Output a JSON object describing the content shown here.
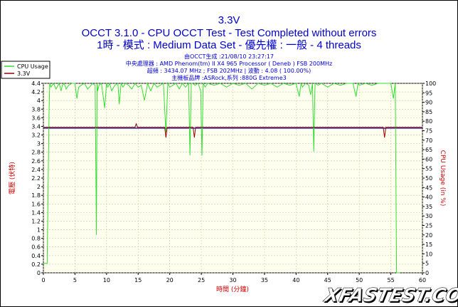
{
  "colors": {
    "background": "#ffffff",
    "plot_bg": "#fffff0",
    "grid": "#c8c8a8",
    "cpu_line": "#33dd33",
    "volt_line": "#990000",
    "avg_line": "#2020aa",
    "title": "#0000cc",
    "axis_title": "#cc0000"
  },
  "header": {
    "line1": "3.3V",
    "line2": "OCCT 3.1.0 - CPU OCCT Test - Test Completed without errors",
    "line3": "1時 - 模式 : Medium Data Set - 優先權 : 一般 - 4 threads"
  },
  "info": {
    "line1": "由OCCT生成 :21/08/10 23:27:17",
    "line2": "中央處理器 : AMD Phenom(tm) II X4 965 Processor ( Deneb ) FSB 200MHz",
    "line3": "超頻 : 3434.07 MHz ; FSB 202MHz | 波動 : 4.08 ( 100.00%)",
    "line4": "主機板品牌 :ASRock,系列 :880G Extreme3"
  },
  "watermark": "XFASTEST.COM",
  "chart_data": {
    "type": "line",
    "xlabel": "時間 (分鐘)",
    "ylabel_left": "電壓 (伏特)",
    "ylabel_right": "CPU Usage (in %)",
    "xlim": [
      0,
      60
    ],
    "ylim_left": [
      0,
      4.4
    ],
    "ylim_right": [
      0,
      100
    ],
    "x_ticks": [
      0,
      5,
      10,
      15,
      20,
      25,
      30,
      35,
      40,
      45,
      50,
      55,
      60
    ],
    "y_left_ticks": [
      "0",
      "0.2",
      "0.4",
      "0.6",
      "0.8",
      "1",
      "1.2",
      "1.4",
      "1.6",
      "1.8",
      "2",
      "2.2",
      "2.4",
      "2.6",
      "2.8",
      "3",
      "3.2",
      "3.4",
      "3.6",
      "3.8",
      "4",
      "4.2",
      "4.4"
    ],
    "y_right_ticks": [
      0,
      5,
      10,
      15,
      20,
      25,
      30,
      35,
      40,
      45,
      50,
      55,
      60,
      65,
      70,
      75,
      80,
      85,
      90,
      95,
      100
    ],
    "grid": true,
    "legend_position": "top-left",
    "series": [
      {
        "name": "CPU Usage",
        "axis": "right",
        "color": "#33dd33",
        "x": [
          0,
          0.6,
          0.9,
          1.0,
          1.2,
          1.6,
          2.0,
          2.5,
          2.8,
          3.0,
          3.3,
          3.6,
          4.0,
          4.5,
          5.0,
          5.3,
          5.6,
          6.0,
          6.5,
          7.0,
          7.3,
          7.8,
          8.2,
          8.4,
          8.5,
          8.6,
          8.8,
          9.2,
          9.7,
          10.0,
          10.2,
          10.5,
          10.8,
          11.3,
          11.8,
          12.0,
          12.3,
          12.6,
          13.0,
          13.5,
          14.0,
          14.5,
          15.0,
          15.5,
          16.0,
          16.5,
          17.0,
          17.5,
          18.0,
          18.5,
          19.0,
          19.4,
          19.7,
          20.0,
          20.5,
          21.0,
          21.5,
          22.0,
          22.5,
          23.0,
          23.2,
          23.4,
          23.6,
          24.0,
          24.5,
          24.9,
          25.1,
          25.3,
          25.6,
          26.0,
          27.0,
          28.0,
          29.0,
          30.0,
          31.0,
          32.0,
          33.0,
          34.0,
          35.0,
          36.0,
          37.0,
          38.0,
          39.0,
          40.0,
          40.5,
          40.8,
          41.0,
          41.5,
          42.0,
          42.3,
          42.6,
          42.8,
          43.0,
          43.5,
          44.0,
          45.0,
          46.0,
          47.0,
          48.0,
          49.0,
          49.5,
          49.8,
          50.0,
          51.0,
          52.0,
          53.0,
          54.0,
          55.0,
          55.4,
          55.7,
          55.9,
          56.0,
          56.1,
          56.4
        ],
        "values": [
          5,
          5,
          85,
          100,
          98,
          100,
          97,
          100,
          96,
          99,
          100,
          97,
          99,
          100,
          100,
          92,
          98,
          99,
          100,
          97,
          98,
          100,
          99,
          20,
          100,
          96,
          99,
          100,
          87,
          100,
          98,
          100,
          96,
          99,
          100,
          89,
          100,
          98,
          100,
          99,
          97,
          100,
          98,
          99,
          91,
          100,
          96,
          100,
          98,
          99,
          100,
          74,
          100,
          98,
          99,
          100,
          97,
          100,
          98,
          100,
          62,
          100,
          100,
          99,
          100,
          96,
          62,
          100,
          98,
          100,
          99,
          100,
          98,
          100,
          99,
          100,
          97,
          100,
          99,
          100,
          98,
          100,
          99,
          100,
          93,
          100,
          98,
          100,
          99,
          94,
          100,
          64,
          100,
          99,
          100,
          98,
          100,
          99,
          100,
          100,
          93,
          100,
          99,
          100,
          99,
          100,
          100,
          100,
          92,
          100,
          0,
          0,
          0,
          0
        ]
      },
      {
        "name": "3.3V",
        "axis": "left",
        "color": "#990000",
        "x": [
          0,
          1,
          5,
          10,
          14.5,
          14.7,
          14.9,
          15.2,
          19.2,
          19.4,
          19.6,
          23.7,
          23.9,
          24.1,
          30,
          40,
          53.8,
          54.0,
          54.2,
          58.3,
          60
        ],
        "values": [
          3.38,
          3.38,
          3.38,
          3.38,
          3.38,
          3.46,
          3.38,
          3.38,
          3.38,
          3.14,
          3.38,
          3.38,
          3.14,
          3.38,
          3.38,
          3.38,
          3.38,
          3.14,
          3.38,
          3.38,
          3.38
        ]
      }
    ],
    "reference_line": {
      "value": 3.36,
      "axis": "left",
      "color": "#2020aa"
    }
  }
}
